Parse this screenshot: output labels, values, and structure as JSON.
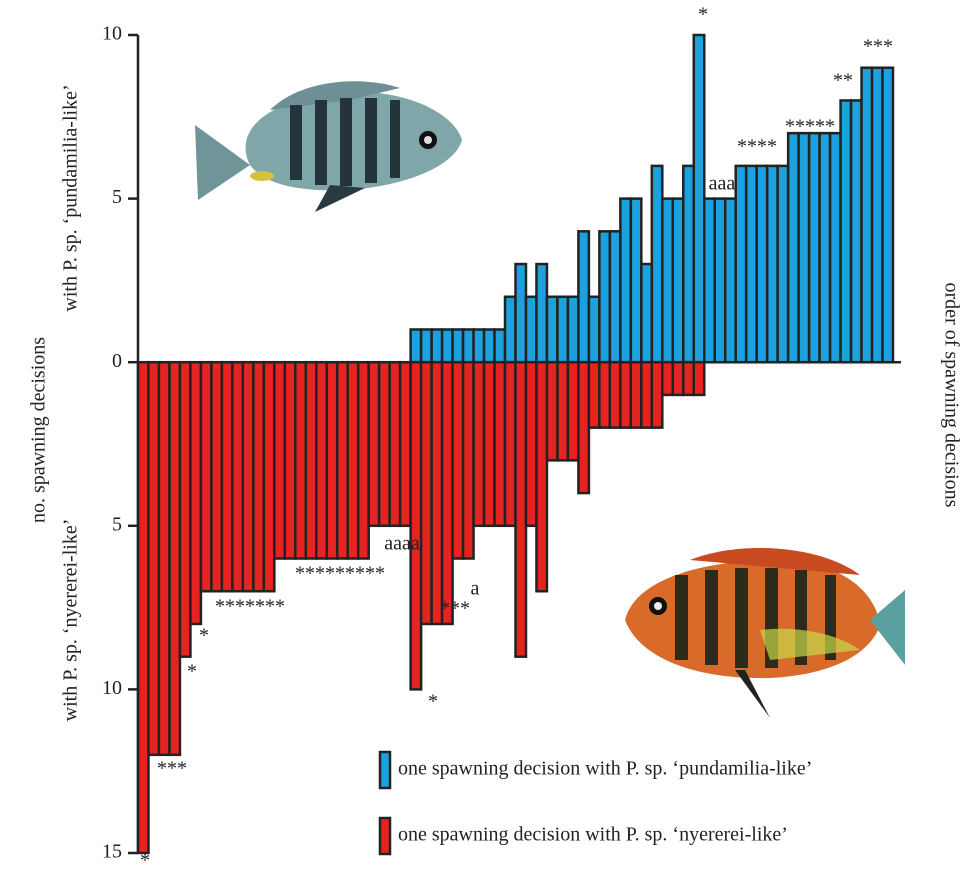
{
  "chart_data": {
    "type": "bar",
    "y_label_upper": "with P. sp. ‘pundamilia-like’",
    "y_label_middle": "no. spawning decisions",
    "y_label_lower": "with P. sp. ‘nyererei-like’",
    "x_label": "order of spawning decisions",
    "ylim": [
      -15,
      10
    ],
    "yticks": [
      {
        "value": -15,
        "label": "15"
      },
      {
        "value": -10,
        "label": "10"
      },
      {
        "value": -5,
        "label": "5"
      },
      0,
      5,
      10
    ],
    "series": [
      {
        "name": "one spawning decision with P. sp. ‘pundamilia-like’",
        "color": "#1ba1dd",
        "values": [
          0,
          0,
          0,
          0,
          0,
          0,
          0,
          0,
          0,
          0,
          0,
          0,
          0,
          0,
          0,
          0,
          0,
          0,
          0,
          0,
          0,
          0,
          0,
          0,
          0,
          0,
          1,
          1,
          1,
          1,
          1,
          1,
          1,
          1,
          1,
          2,
          3,
          2,
          3,
          2,
          2,
          2,
          4,
          2,
          4,
          4,
          5,
          5,
          3,
          6,
          5,
          5,
          6,
          10,
          5,
          5,
          5,
          6,
          6,
          6,
          6,
          6,
          7,
          7,
          7,
          7,
          7,
          8,
          8,
          9,
          9,
          9
        ]
      },
      {
        "name": "one spawning decision with P. sp. ‘nyererei-like’",
        "color": "#e52421",
        "values": [
          -15,
          -12,
          -12,
          -12,
          -9,
          -8,
          -7,
          -7,
          -7,
          -7,
          -7,
          -7,
          -7,
          -6,
          -6,
          -6,
          -6,
          -6,
          -6,
          -6,
          -6,
          -6,
          -5,
          -5,
          -5,
          -5,
          -10,
          -8,
          -8,
          -8,
          -6,
          -6,
          -5,
          -5,
          -5,
          -5,
          -9,
          -5,
          -7,
          -3,
          -3,
          -3,
          -4,
          -2,
          -2,
          -2,
          -2,
          -2,
          -2,
          -2,
          -1,
          -1,
          -1,
          -1,
          0,
          0,
          0,
          0,
          0,
          0,
          0,
          0,
          0,
          0,
          0,
          0,
          0,
          0,
          0,
          0,
          0,
          0
        ]
      }
    ],
    "annotations": [
      "*",
      "***",
      "*",
      "*",
      "*******",
      "*********",
      "aaaa",
      "*",
      "***",
      "a",
      "aaa",
      "*",
      "****",
      "*****",
      "**",
      "***"
    ]
  }
}
